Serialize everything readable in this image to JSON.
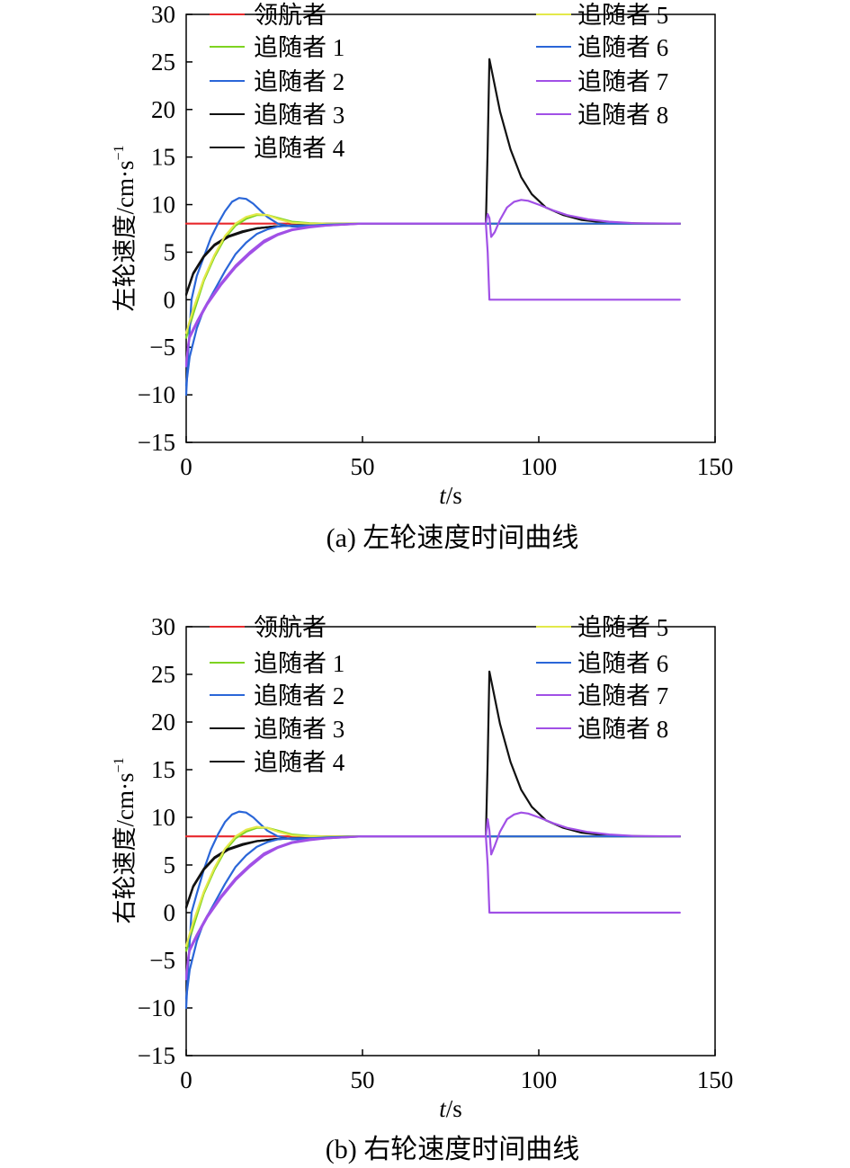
{
  "legend_labels": [
    "领航者",
    "追随者 1",
    "追随者 2",
    "追随者 3",
    "追随者 4",
    "追随者 5",
    "追随者 6",
    "追随者 7",
    "追随者 8"
  ],
  "colors": {
    "leader": "#e8282c",
    "f1": "#7ed321",
    "f2": "#2a66d8",
    "f3": "#111111",
    "f4": "#111111",
    "f5": "#e3e94a",
    "f6": "#2a66d8",
    "f7": "#a150e6",
    "f8": "#a150e6"
  },
  "chart_data": [
    {
      "type": "line",
      "panel": "a",
      "caption": "(a) 左轮速度时间曲线",
      "ylabel_main": "左轮速度/cm·s",
      "ylabel_sup": "−1",
      "xlabel_italic": "t",
      "xlabel_rest": "/s",
      "xlim": [
        0,
        150
      ],
      "ylim": [
        -15,
        30
      ],
      "xticks": [
        0,
        50,
        100,
        150
      ],
      "yticks": [
        -15,
        -10,
        -5,
        0,
        5,
        10,
        15,
        20,
        25,
        30
      ],
      "xtick_labels": [
        "0",
        "50",
        "100",
        "150"
      ],
      "ytick_labels": [
        "−15",
        "−10",
        "−5",
        "0",
        "5",
        "10",
        "15",
        "20",
        "25",
        "30"
      ],
      "series": [
        {
          "name": "领航者",
          "color_key": "leader",
          "x": [
            0,
            140
          ],
          "y": [
            8,
            8
          ]
        },
        {
          "name": "追随者 1",
          "color_key": "f1",
          "x": [
            0,
            2,
            5,
            8,
            11,
            14,
            17,
            20,
            23,
            26,
            30,
            35,
            40,
            50,
            60,
            80,
            85,
            140
          ],
          "y": [
            -4,
            -1.5,
            2,
            4.5,
            6.5,
            7.8,
            8.5,
            8.9,
            8.9,
            8.6,
            8.2,
            8.05,
            8,
            8,
            8,
            8,
            8,
            8
          ]
        },
        {
          "name": "追随者 2",
          "color_key": "f2",
          "x": [
            0,
            0.5,
            1.5,
            3,
            5,
            7,
            9,
            11,
            13,
            15,
            17,
            19,
            21,
            23,
            26,
            30,
            35,
            40,
            50,
            60,
            85,
            140
          ],
          "y": [
            -10,
            -6,
            0,
            2.5,
            4.5,
            6.5,
            8,
            9.3,
            10.3,
            10.7,
            10.6,
            10.1,
            9.4,
            8.7,
            8,
            7.7,
            7.7,
            7.9,
            8,
            8,
            8,
            8
          ]
        },
        {
          "name": "追随者 3",
          "color_key": "f3",
          "x": [
            0,
            2,
            5,
            8,
            12,
            16,
            20,
            25,
            30,
            35,
            40,
            50,
            60,
            84,
            85,
            85.5,
            86,
            89,
            92,
            95,
            98,
            102,
            107,
            112,
            118,
            125,
            132,
            140
          ],
          "y": [
            0.5,
            2.7,
            4.5,
            5.7,
            6.6,
            7.1,
            7.5,
            7.7,
            7.8,
            7.9,
            8,
            8,
            8,
            8,
            8,
            16,
            25.3,
            19.8,
            15.8,
            12.9,
            11.1,
            9.7,
            8.9,
            8.4,
            8.15,
            8.05,
            8,
            8
          ]
        },
        {
          "name": "追随者 4",
          "color_key": "f4",
          "x": [
            0,
            2,
            5,
            8,
            12,
            16,
            20,
            25,
            30,
            35,
            40,
            50,
            60,
            85,
            140
          ],
          "y": [
            0.6,
            2.8,
            4.6,
            5.8,
            6.7,
            7.2,
            7.5,
            7.7,
            7.8,
            7.9,
            8,
            8,
            8,
            8,
            8
          ]
        },
        {
          "name": "追随者 5",
          "color_key": "f5",
          "x": [
            0,
            2,
            5,
            8,
            11,
            14,
            17,
            20,
            23,
            26,
            30,
            35,
            40,
            50,
            60,
            85,
            140
          ],
          "y": [
            -3.5,
            -1,
            2.2,
            4.7,
            6.7,
            8,
            8.7,
            9,
            8.9,
            8.5,
            8.1,
            8,
            8,
            8,
            8,
            8,
            8
          ]
        },
        {
          "name": "追随者 6",
          "color_key": "f6",
          "x": [
            0,
            1,
            3,
            5,
            8,
            11,
            14,
            17,
            20,
            23,
            26,
            30,
            35,
            40,
            50,
            60,
            85,
            140
          ],
          "y": [
            -9,
            -6,
            -3,
            -1,
            1,
            3,
            4.8,
            6,
            6.9,
            7.4,
            7.7,
            7.8,
            7.8,
            7.9,
            8,
            8,
            8,
            8
          ]
        },
        {
          "name": "追随者 7",
          "color_key": "f7",
          "x": [
            0,
            0.5,
            1,
            3,
            6,
            10,
            14,
            18,
            22,
            26,
            30,
            35,
            40,
            50,
            60,
            85,
            85.5,
            86,
            86.5,
            87.5,
            89,
            91,
            93,
            95,
            97,
            100,
            104,
            108,
            114,
            120,
            127,
            140
          ],
          "y": [
            -7,
            -5,
            -4,
            -2.5,
            -0.5,
            1.6,
            3.4,
            4.8,
            6,
            6.8,
            7.3,
            7.6,
            7.8,
            8,
            8,
            8,
            9,
            8.6,
            6.6,
            7.1,
            8.4,
            9.7,
            10.3,
            10.5,
            10.4,
            10,
            9.4,
            8.9,
            8.45,
            8.2,
            8.05,
            8
          ]
        },
        {
          "name": "追随者 8",
          "color_key": "f8",
          "x": [
            0,
            0.5,
            1,
            3,
            6,
            10,
            14,
            18,
            22,
            26,
            30,
            35,
            40,
            50,
            60,
            85,
            85.5,
            86,
            140
          ],
          "y": [
            -6.8,
            -4.8,
            -3.8,
            -2.3,
            -0.3,
            1.8,
            3.6,
            5,
            6.2,
            6.9,
            7.4,
            7.7,
            7.8,
            8,
            8,
            8,
            5,
            0,
            0
          ]
        }
      ]
    },
    {
      "type": "line",
      "panel": "b",
      "caption": "(b) 右轮速度时间曲线",
      "ylabel_main": "右轮速度/cm·s",
      "ylabel_sup": "−1",
      "xlabel_italic": "t",
      "xlabel_rest": "/s",
      "xlim": [
        0,
        150
      ],
      "ylim": [
        -15,
        30
      ],
      "xticks": [
        0,
        50,
        100,
        150
      ],
      "yticks": [
        -15,
        -10,
        -5,
        0,
        5,
        10,
        15,
        20,
        25,
        30
      ],
      "xtick_labels": [
        "0",
        "50",
        "100",
        "150"
      ],
      "ytick_labels": [
        "−15",
        "−10",
        "−5",
        "0",
        "5",
        "10",
        "15",
        "20",
        "25",
        "30"
      ],
      "series": [
        {
          "name": "领航者",
          "color_key": "leader",
          "x": [
            0,
            140
          ],
          "y": [
            8,
            8
          ]
        },
        {
          "name": "追随者 1",
          "color_key": "f1",
          "x": [
            0,
            2,
            5,
            8,
            11,
            14,
            17,
            20,
            23,
            26,
            30,
            35,
            40,
            50,
            60,
            85,
            140
          ],
          "y": [
            -4,
            -1.5,
            2,
            4.5,
            6.5,
            7.8,
            8.5,
            8.9,
            8.9,
            8.6,
            8.2,
            8.05,
            8,
            8,
            8,
            8,
            8
          ]
        },
        {
          "name": "追随者 2",
          "color_key": "f2",
          "x": [
            0,
            0.5,
            1.5,
            3,
            5,
            7,
            9,
            11,
            13,
            15,
            17,
            19,
            21,
            23,
            26,
            30,
            35,
            40,
            50,
            60,
            85,
            140
          ],
          "y": [
            -10,
            -6,
            0,
            2,
            4.5,
            6.6,
            8.2,
            9.5,
            10.3,
            10.6,
            10.5,
            10,
            9.3,
            8.6,
            8,
            7.7,
            7.7,
            7.9,
            8,
            8,
            8,
            8
          ]
        },
        {
          "name": "追随者 3",
          "color_key": "f3",
          "x": [
            0,
            2,
            5,
            8,
            12,
            16,
            20,
            25,
            30,
            35,
            40,
            50,
            60,
            84,
            85,
            85.5,
            86,
            89,
            92,
            95,
            98,
            102,
            107,
            112,
            118,
            125,
            132,
            140
          ],
          "y": [
            0.5,
            2.7,
            4.5,
            5.7,
            6.6,
            7.1,
            7.5,
            7.7,
            7.8,
            7.9,
            8,
            8,
            8,
            8,
            8,
            16,
            25.3,
            19.8,
            15.8,
            12.9,
            11.1,
            9.7,
            8.9,
            8.4,
            8.15,
            8.05,
            8,
            8
          ]
        },
        {
          "name": "追随者 4",
          "color_key": "f4",
          "x": [
            0,
            2,
            5,
            8,
            12,
            16,
            20,
            25,
            30,
            35,
            40,
            50,
            60,
            85,
            140
          ],
          "y": [
            0.6,
            2.8,
            4.6,
            5.8,
            6.7,
            7.2,
            7.5,
            7.7,
            7.8,
            7.9,
            8,
            8,
            8,
            8,
            8
          ]
        },
        {
          "name": "追随者 5",
          "color_key": "f5",
          "x": [
            0,
            2,
            5,
            8,
            11,
            14,
            17,
            20,
            23,
            26,
            30,
            35,
            40,
            50,
            60,
            85,
            140
          ],
          "y": [
            -3.5,
            -1,
            2.2,
            4.7,
            6.7,
            8,
            8.7,
            9,
            8.9,
            8.5,
            8.1,
            8,
            8,
            8,
            8,
            8,
            8
          ]
        },
        {
          "name": "追随者 6",
          "color_key": "f6",
          "x": [
            0,
            1,
            3,
            5,
            8,
            11,
            14,
            17,
            20,
            23,
            26,
            30,
            35,
            40,
            50,
            60,
            85,
            140
          ],
          "y": [
            -9,
            -6,
            -3,
            -1,
            1,
            3,
            4.8,
            6,
            6.9,
            7.4,
            7.7,
            7.8,
            7.8,
            7.9,
            8,
            8,
            8,
            8
          ]
        },
        {
          "name": "追随者 7",
          "color_key": "f7",
          "x": [
            0,
            0.5,
            1,
            3,
            6,
            10,
            14,
            18,
            22,
            26,
            30,
            35,
            40,
            50,
            60,
            85,
            85.5,
            86,
            86.5,
            87.5,
            89,
            91,
            93,
            95,
            97,
            100,
            104,
            108,
            114,
            120,
            127,
            140
          ],
          "y": [
            -7,
            -5,
            -4,
            -2.5,
            -0.5,
            1.6,
            3.4,
            4.8,
            6,
            6.8,
            7.3,
            7.6,
            7.8,
            8,
            8,
            8,
            9.8,
            8.6,
            6.1,
            7,
            8.5,
            9.8,
            10.3,
            10.5,
            10.4,
            10,
            9.4,
            8.9,
            8.45,
            8.2,
            8.05,
            8
          ]
        },
        {
          "name": "追随者 8",
          "color_key": "f8",
          "x": [
            0,
            0.5,
            1,
            3,
            6,
            10,
            14,
            18,
            22,
            26,
            30,
            35,
            40,
            50,
            60,
            85,
            85.5,
            86,
            140
          ],
          "y": [
            -6.8,
            -4.8,
            -3.8,
            -2.3,
            -0.3,
            1.8,
            3.6,
            5,
            6.2,
            6.9,
            7.4,
            7.7,
            7.8,
            8,
            8,
            8,
            5,
            0,
            0
          ]
        }
      ]
    }
  ]
}
